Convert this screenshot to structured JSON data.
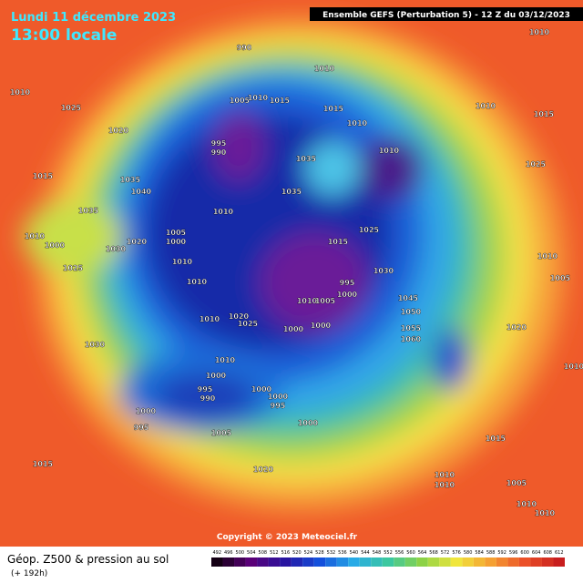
{
  "header": {
    "date": "Lundi 11 décembre 2023",
    "time": "13:00 locale",
    "model": "Ensemble GEFS  (Perturbation 5)  -  12 Z du 03/12/2023"
  },
  "footer": {
    "title": "Géop. Z500 & pression au sol",
    "lead": "(+ 192h)",
    "copyright": "Copyright © 2023 Meteociel.fr"
  },
  "colorbar": {
    "labels": [
      492,
      496,
      500,
      504,
      508,
      512,
      516,
      520,
      524,
      528,
      532,
      536,
      540,
      544,
      548,
      552,
      556,
      560,
      564,
      568,
      572,
      576,
      580,
      584,
      588,
      592,
      596,
      600,
      604,
      608,
      612
    ]
  },
  "isobar_labels": [
    1010,
    1025,
    1020,
    1015,
    1035,
    1040,
    1035,
    1010,
    1000,
    1030,
    1025,
    1020,
    1005,
    1000,
    1010,
    1010,
    1010,
    1010,
    1020,
    1025,
    995,
    990,
    1005,
    1015,
    1035,
    1035,
    1010,
    1015,
    1010,
    1010,
    1015,
    1025,
    1030,
    995,
    1000,
    1010,
    1005,
    1000,
    1000,
    1045,
    1050,
    1055,
    1060,
    1010,
    1015,
    1010,
    1025,
    1010,
    1005,
    1020,
    1010,
    1000,
    995,
    990,
    1000,
    1000,
    995,
    1000,
    995,
    1005,
    1000,
    1010,
    1030,
    1015,
    1020,
    1015,
    1005,
    1010,
    1010,
    1010,
    1010,
    990,
    1010
  ]
}
